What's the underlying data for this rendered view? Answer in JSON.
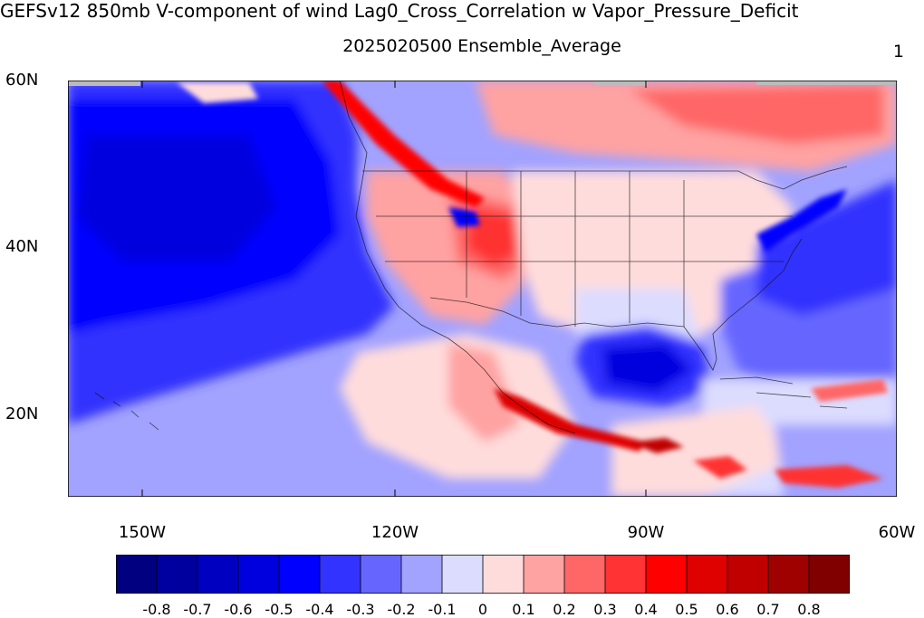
{
  "title": "GEFSv12 850mb V-component of wind Lag0_Cross_Correlation w Vapor_Pressure_Deficit",
  "subtitle": "2025020500 Ensemble_Average",
  "corner_label": "1",
  "lat_labels": [
    "60N",
    "40N",
    "20N"
  ],
  "lon_labels": [
    "150W",
    "120W",
    "90W",
    "60W"
  ],
  "colorbar": {
    "colors": [
      "#000080",
      "#00009f",
      "#0000c0",
      "#0000df",
      "#0000ff",
      "#3333ff",
      "#6666ff",
      "#a2a2ff",
      "#dcdcff",
      "#ffdcdc",
      "#ffa2a2",
      "#ff6666",
      "#ff3333",
      "#ff0000",
      "#df0000",
      "#c00000",
      "#9f0000",
      "#800000"
    ],
    "tick_labels": [
      "-0.8",
      "-0.7",
      "-0.6",
      "-0.5",
      "-0.4",
      "-0.3",
      "-0.2",
      "-0.1",
      "0",
      "0.1",
      "0.2",
      "0.3",
      "0.4",
      "0.5",
      "0.6",
      "0.7",
      "0.8"
    ]
  }
}
